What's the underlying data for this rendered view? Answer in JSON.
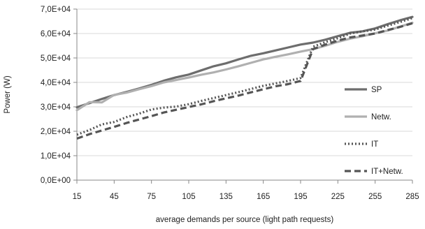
{
  "chart_data": {
    "type": "line",
    "title": "",
    "xlabel": "average demands per source (light path requests)",
    "ylabel": "Power (W)",
    "x": [
      15,
      25,
      35,
      45,
      55,
      65,
      75,
      85,
      95,
      105,
      115,
      125,
      135,
      145,
      155,
      165,
      175,
      185,
      195,
      205,
      215,
      225,
      235,
      245,
      255,
      265,
      275,
      285
    ],
    "x_ticks": [
      "15",
      "45",
      "75",
      "105",
      "135",
      "165",
      "195",
      "225",
      "255",
      "285"
    ],
    "y_ticks": [
      "0,0E+00",
      "1,0E+04",
      "2,0E+04",
      "3,0E+04",
      "4,0E+04",
      "5,0E+04",
      "6,0E+04",
      "7,0E+04"
    ],
    "xlim": [
      15,
      285
    ],
    "ylim": [
      0,
      70000
    ],
    "grid": "horizontal",
    "legend_position": "right",
    "series": [
      {
        "name": "SP",
        "color": "#6d6d6d",
        "style": "solid",
        "values": [
          29800,
          31500,
          33200,
          34800,
          36100,
          37500,
          39000,
          40700,
          42100,
          43200,
          44900,
          46600,
          47800,
          49400,
          50900,
          51900,
          53100,
          54300,
          55500,
          56300,
          57500,
          58900,
          60300,
          60900,
          62100,
          63800,
          65400,
          66800
        ]
      },
      {
        "name": "Netw.",
        "color": "#b0b0b0",
        "style": "solid",
        "values": [
          28600,
          31900,
          31800,
          34900,
          35800,
          37200,
          38500,
          40000,
          41000,
          42000,
          43100,
          44100,
          45300,
          46600,
          48000,
          49400,
          50500,
          51500,
          52600,
          53600,
          55000,
          56600,
          57900,
          58900,
          60100,
          61200,
          62800,
          64400
        ]
      },
      {
        "name": "IT",
        "color": "#555555",
        "style": "dotted",
        "values": [
          18600,
          20500,
          22800,
          23800,
          25800,
          27200,
          28900,
          29700,
          30100,
          31100,
          32400,
          33600,
          34800,
          36000,
          37300,
          38600,
          39600,
          40600,
          41800,
          54600,
          56500,
          58100,
          60000,
          60900,
          61600,
          63200,
          64700,
          66300
        ]
      },
      {
        "name": "IT+Netw.",
        "color": "#555555",
        "style": "dashed",
        "values": [
          17000,
          18800,
          20300,
          21800,
          23400,
          24800,
          26200,
          27700,
          28800,
          29900,
          31000,
          32300,
          33500,
          34600,
          35900,
          37200,
          38400,
          39300,
          40600,
          53600,
          55500,
          57100,
          58400,
          59200,
          60000,
          61400,
          62700,
          64200
        ]
      }
    ]
  }
}
